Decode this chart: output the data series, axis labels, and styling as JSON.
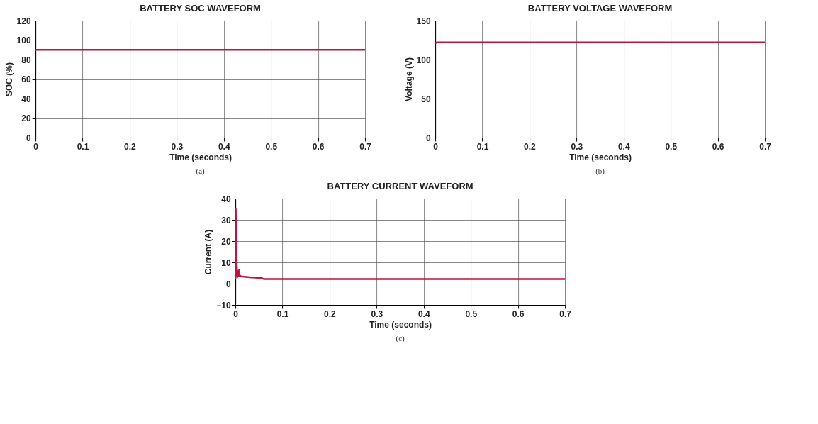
{
  "chart_data": [
    {
      "type": "line",
      "title": "BATTERY SOC WAVEFORM",
      "xlabel": "Time (seconds)",
      "ylabel": "SOC (%)",
      "annotations": [
        "(a)"
      ],
      "series": [
        {
          "color": "#c0143c",
          "x": [
            0,
            0.7
          ],
          "values": [
            90,
            90
          ]
        }
      ],
      "xlim": [
        0,
        0.7
      ],
      "xticks": [
        0,
        0.1,
        0.2,
        0.3,
        0.4,
        0.5,
        0.6,
        0.7
      ],
      "ylim": [
        0,
        120
      ],
      "yticks": [
        0,
        20,
        40,
        60,
        80,
        100,
        120
      ],
      "grid": true,
      "marker": "none",
      "line_style": "solid"
    },
    {
      "type": "line",
      "title": "BATTERY VOLTAGE WAVEFORM",
      "xlabel": "Time (seconds)",
      "ylabel": "Voltage (V)",
      "annotations": [
        "(b)"
      ],
      "series": [
        {
          "color": "#c0143c",
          "x": [
            0,
            0.003,
            0.7
          ],
          "values": [
            121,
            122,
            122
          ]
        }
      ],
      "xlim": [
        0,
        0.7
      ],
      "xticks": [
        0,
        0.1,
        0.2,
        0.3,
        0.4,
        0.5,
        0.6,
        0.7
      ],
      "ylim": [
        0,
        150
      ],
      "yticks": [
        0,
        50,
        100,
        150
      ],
      "grid": true,
      "marker": "none",
      "line_style": "solid"
    },
    {
      "type": "line",
      "title": "BATTERY CURRENT WAVEFORM",
      "xlabel": "Time (seconds)",
      "ylabel": "Current (A)",
      "annotations": [
        "(c)"
      ],
      "series": [
        {
          "color": "#c0143c",
          "x": [
            0,
            0.0008,
            0.0015,
            0.002,
            0.003,
            0.004,
            0.005,
            0.006,
            0.007,
            0.008,
            0.009,
            0.011,
            0.015,
            0.03,
            0.055,
            0.06,
            0.2,
            0.4,
            0.7
          ],
          "values": [
            2,
            35,
            20,
            16,
            8,
            3,
            6,
            4,
            3.5,
            6.5,
            4,
            3.5,
            3.3,
            3,
            2.7,
            2.2,
            2.2,
            2.2,
            2.2
          ]
        }
      ],
      "xlim": [
        0,
        0.7
      ],
      "xticks": [
        0,
        0.1,
        0.2,
        0.3,
        0.4,
        0.5,
        0.6,
        0.7
      ],
      "ylim": [
        -10,
        40
      ],
      "yticks": [
        -10,
        0,
        10,
        20,
        30,
        40
      ],
      "grid": true,
      "marker": "none",
      "line_style": "solid"
    }
  ]
}
